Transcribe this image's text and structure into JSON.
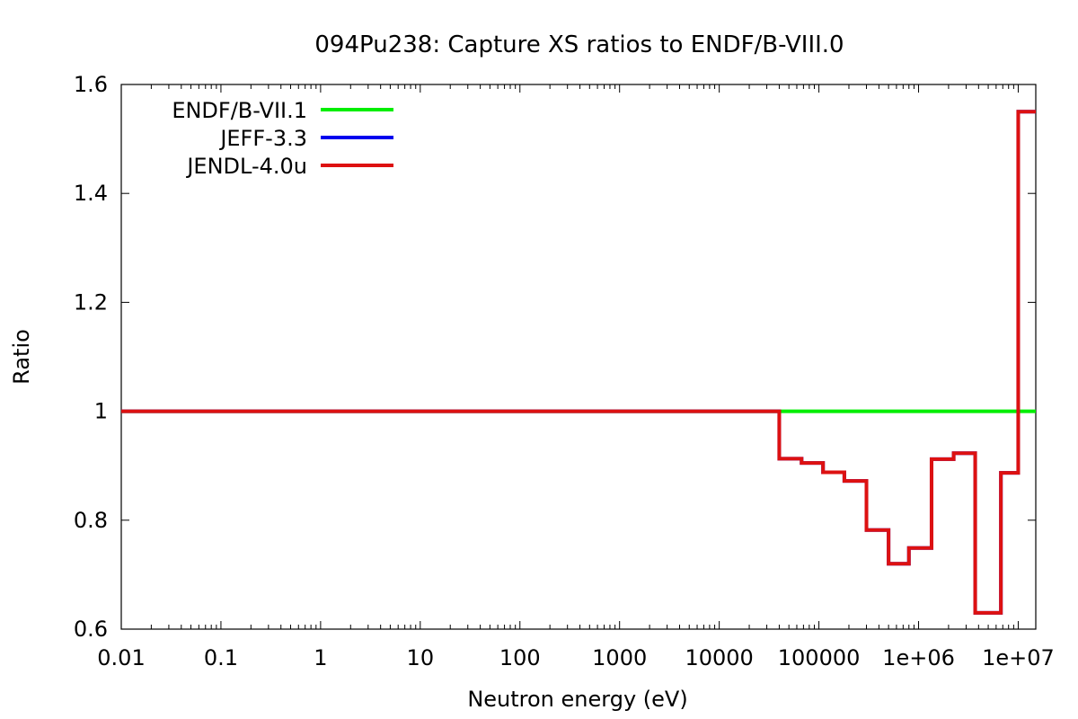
{
  "chart_data": {
    "type": "line",
    "title": "094Pu238: Capture XS ratios to ENDF/B-VIII.0",
    "xlabel": "Neutron energy (eV)",
    "ylabel": "Ratio",
    "xscale": "log",
    "xlim": [
      0.01,
      15000000
    ],
    "ylim": [
      0.6,
      1.6
    ],
    "xticks": [
      "0.01",
      "0.1",
      "1",
      "10",
      "100",
      "1000",
      "10000",
      "100000",
      "1e+06",
      "1e+07"
    ],
    "yticks": [
      "0.6",
      "0.8",
      "1",
      "1.2",
      "1.4",
      "1.6"
    ],
    "legend_position": "top-left",
    "grid": false,
    "series": [
      {
        "name": "ENDF/B-VII.1",
        "color": "#00ee00",
        "x": [
          0.01,
          15000000
        ],
        "y": [
          1.0,
          1.0
        ]
      },
      {
        "name": "JEFF-3.3",
        "color": "#0000ee",
        "x": [
          0.01,
          40000,
          40000,
          67000,
          67000,
          110000,
          110000,
          180000,
          180000,
          300000,
          300000,
          500000,
          500000,
          800000,
          800000,
          1350000,
          1350000,
          2250000,
          2250000,
          3700000,
          3700000,
          6700000,
          6700000,
          10000000,
          10000000,
          15000000
        ],
        "y": [
          1.0,
          1.0,
          0.913,
          0.913,
          0.905,
          0.905,
          0.888,
          0.888,
          0.872,
          0.872,
          0.782,
          0.782,
          0.72,
          0.72,
          0.749,
          0.749,
          0.912,
          0.912,
          0.923,
          0.923,
          0.63,
          0.63,
          0.887,
          0.887,
          1.55,
          1.55
        ]
      },
      {
        "name": "JENDL-4.0u",
        "color": "#dd1111",
        "x": [
          0.01,
          40000,
          40000,
          67000,
          67000,
          110000,
          110000,
          180000,
          180000,
          300000,
          300000,
          500000,
          500000,
          800000,
          800000,
          1350000,
          1350000,
          2250000,
          2250000,
          3700000,
          3700000,
          6700000,
          6700000,
          10000000,
          10000000,
          15000000
        ],
        "y": [
          1.0,
          1.0,
          0.913,
          0.913,
          0.905,
          0.905,
          0.888,
          0.888,
          0.872,
          0.872,
          0.782,
          0.782,
          0.72,
          0.72,
          0.749,
          0.749,
          0.912,
          0.912,
          0.923,
          0.923,
          0.63,
          0.63,
          0.887,
          0.887,
          1.55,
          1.55
        ]
      }
    ]
  }
}
